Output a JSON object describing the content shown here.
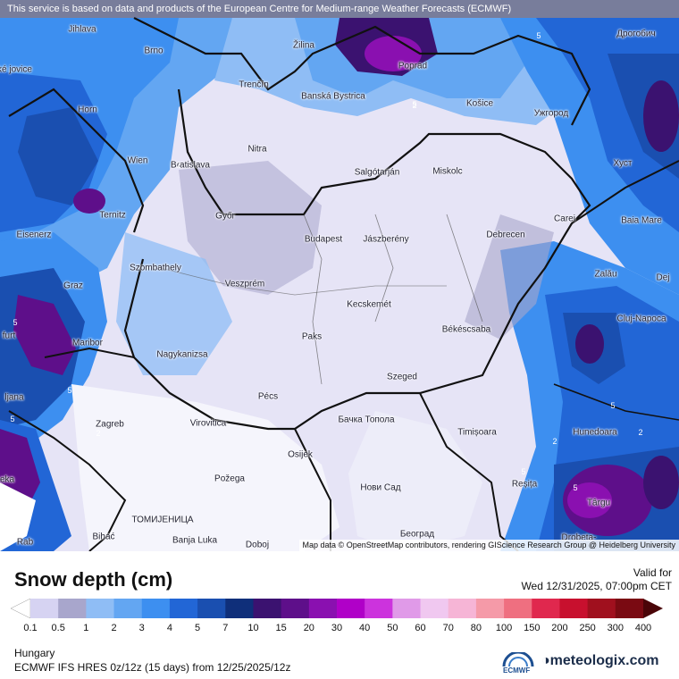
{
  "header_notice": "This service is based on data and products of the European Centre for Medium-range Weather Forecasts (ECMWF)",
  "attribution": "Map data © OpenStreetMap contributors, rendering GIScience Research Group @ Heidelberg University",
  "title": "Snow depth (cm)",
  "valid_label": "Valid for",
  "valid_date": "Wed 12/31/2025, 07:00pm CET",
  "region": "Hungary",
  "model_run": "ECMWF IFS HRES 0z/12z (15 days) from 12/25/2025/12z",
  "brand": "meteologix.com",
  "ecmwf_logo_text": "ECMWF",
  "colorbar": {
    "ticks": [
      "0.1",
      "0.5",
      "1",
      "2",
      "3",
      "4",
      "5",
      "7",
      "10",
      "15",
      "20",
      "30",
      "40",
      "50",
      "60",
      "70",
      "80",
      "100",
      "150",
      "200",
      "250",
      "300",
      "400"
    ],
    "colors": [
      "#ffffff",
      "#d6d3f2",
      "#a8a6cc",
      "#8fbdf5",
      "#63a6f2",
      "#3d8ff0",
      "#2266d6",
      "#1a4fb0",
      "#0f2f7a",
      "#3b1270",
      "#5e0f8a",
      "#8a10b0",
      "#b000c8",
      "#cc33dd",
      "#e09ae8",
      "#f0c8f0",
      "#f6b5d6",
      "#f59aa8",
      "#ef6f80",
      "#e0284e",
      "#c8102e",
      "#a0101e",
      "#7a0a12",
      "#4a0508"
    ]
  },
  "cities": [
    {
      "name": "Jihlava"
    },
    {
      "name": "Brno"
    },
    {
      "name": "Žilina"
    },
    {
      "name": "Poprad"
    },
    {
      "name": "Дрогобич"
    },
    {
      "name": "Trenčín"
    },
    {
      "name": "Banská Bystrica"
    },
    {
      "name": "Košice"
    },
    {
      "name": "Ужгород"
    },
    {
      "name": "Horn"
    },
    {
      "name": "Nitra"
    },
    {
      "name": "Wien"
    },
    {
      "name": "Bratislava"
    },
    {
      "name": "Salgótarján"
    },
    {
      "name": "Miskolc"
    },
    {
      "name": "Хуст"
    },
    {
      "name": "Ternitz"
    },
    {
      "name": "Győr"
    },
    {
      "name": "Budapest"
    },
    {
      "name": "Jászberény"
    },
    {
      "name": "Carei"
    },
    {
      "name": "Baia Mare"
    },
    {
      "name": "Eisenerz"
    },
    {
      "name": "Debrecen"
    },
    {
      "name": "Szombathely"
    },
    {
      "name": "Zalău"
    },
    {
      "name": "Graz"
    },
    {
      "name": "Veszprém"
    },
    {
      "name": "Kecskemét"
    },
    {
      "name": "Cluj-Napoca"
    },
    {
      "name": "Maribor"
    },
    {
      "name": "Paks"
    },
    {
      "name": "Békéscsaba"
    },
    {
      "name": "Nagykanizsa"
    },
    {
      "name": "Szeged"
    },
    {
      "name": "Pécs"
    },
    {
      "name": "Zagreb"
    },
    {
      "name": "Virovitica"
    },
    {
      "name": "Бачка Топола"
    },
    {
      "name": "Timișoara"
    },
    {
      "name": "Hunedoara"
    },
    {
      "name": "Osijek"
    },
    {
      "name": "Požega"
    },
    {
      "name": "Нови Сад"
    },
    {
      "name": "Reșița"
    },
    {
      "name": "Târgu"
    },
    {
      "name": "Bihać"
    },
    {
      "name": "ТОМИЈЕНИЦА"
    },
    {
      "name": "Banja Luka"
    },
    {
      "name": "Doboj"
    },
    {
      "name": "Београд"
    },
    {
      "name": "Drobeta-"
    },
    {
      "name": "ljana"
    },
    {
      "name": "furt"
    },
    {
      "name": "ské jovice"
    },
    {
      "name": "Dej"
    },
    {
      "name": "Rab"
    },
    {
      "name": "eka"
    }
  ],
  "contour_labels": [
    "5",
    "5",
    "2",
    "5",
    "2",
    "5",
    "2",
    "2",
    "5",
    "5",
    "5",
    "2",
    "5"
  ]
}
